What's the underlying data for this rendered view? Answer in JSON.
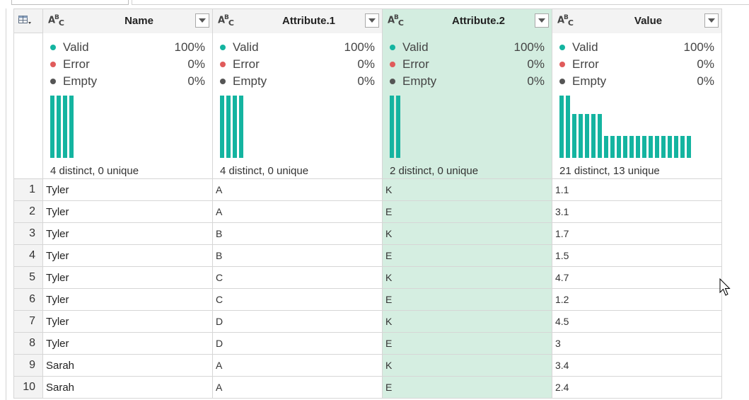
{
  "columns": [
    {
      "name": "Name",
      "type_icon": "abc-text-type-icon",
      "valid": "100%",
      "error": "0%",
      "empty": "0%",
      "distinct": "4 distinct, 0 unique",
      "selected": false,
      "histogram": [
        1,
        1,
        1,
        1
      ]
    },
    {
      "name": "Attribute.1",
      "type_icon": "abc-text-type-icon",
      "valid": "100%",
      "error": "0%",
      "empty": "0%",
      "distinct": "4 distinct, 0 unique",
      "selected": false,
      "histogram": [
        1,
        1,
        1,
        1
      ]
    },
    {
      "name": "Attribute.2",
      "type_icon": "abc-text-type-icon",
      "valid": "100%",
      "error": "0%",
      "empty": "0%",
      "distinct": "2 distinct, 0 unique",
      "selected": true,
      "histogram": [
        1,
        1
      ]
    },
    {
      "name": "Value",
      "type_icon": "abc-text-type-icon",
      "valid": "100%",
      "error": "0%",
      "empty": "0%",
      "distinct": "21 distinct, 13 unique",
      "selected": false,
      "histogram": [
        1,
        1,
        0.7,
        0.7,
        0.7,
        0.7,
        0.7,
        0.35,
        0.35,
        0.35,
        0.35,
        0.35,
        0.35,
        0.35,
        0.35,
        0.35,
        0.35,
        0.35,
        0.35,
        0.35,
        0.35
      ]
    }
  ],
  "quality_labels": {
    "valid": "Valid",
    "error": "Error",
    "empty": "Empty"
  },
  "colors": {
    "valid": "#14b4a0",
    "error": "#e05b5b",
    "empty": "#555555",
    "selected_bg": "#d3ede0"
  },
  "rows": [
    {
      "num": "1",
      "name": "Tyler",
      "attr1": "A",
      "attr2": "K",
      "value": "1.1"
    },
    {
      "num": "2",
      "name": "Tyler",
      "attr1": "A",
      "attr2": "E",
      "value": "3.1"
    },
    {
      "num": "3",
      "name": "Tyler",
      "attr1": "B",
      "attr2": "K",
      "value": "1.7"
    },
    {
      "num": "4",
      "name": "Tyler",
      "attr1": "B",
      "attr2": "E",
      "value": "1.5"
    },
    {
      "num": "5",
      "name": "Tyler",
      "attr1": "C",
      "attr2": "K",
      "value": "4.7"
    },
    {
      "num": "6",
      "name": "Tyler",
      "attr1": "C",
      "attr2": "E",
      "value": "1.2"
    },
    {
      "num": "7",
      "name": "Tyler",
      "attr1": "D",
      "attr2": "K",
      "value": "4.5"
    },
    {
      "num": "8",
      "name": "Tyler",
      "attr1": "D",
      "attr2": "E",
      "value": "3"
    },
    {
      "num": "9",
      "name": "Sarah",
      "attr1": "A",
      "attr2": "K",
      "value": "3.4"
    },
    {
      "num": "10",
      "name": "Sarah",
      "attr1": "A",
      "attr2": "E",
      "value": "2.4"
    }
  ]
}
